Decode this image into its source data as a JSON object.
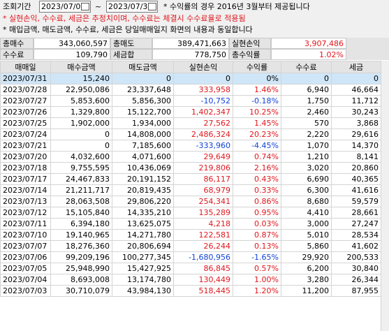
{
  "query": {
    "label": "조회기간",
    "from": "2023/07/0",
    "tilde": "~",
    "to": "2023/07/3",
    "note": "* 수익률의 경우 2016년 3월부터 제공됩니다"
  },
  "notes": [
    "* 실현손익, 수수료, 세금은 추정치이며, 수수료는 체결시 수수료율로 적용됨",
    "* 매입금액, 매도금액, 수수료, 세금은 당일매매일지 화면의 내용과 동일합니다"
  ],
  "summary": [
    [
      {
        "label": "총매수",
        "value": "343,060,597"
      },
      {
        "label": "총매도",
        "value": "389,471,663"
      },
      {
        "label": "실현손익",
        "value": "3,907,486"
      }
    ],
    [
      {
        "label": "수수료",
        "value": "109,790"
      },
      {
        "label": "세금합",
        "value": "778,750"
      },
      {
        "label": "총수익률",
        "value": "1.02%"
      }
    ]
  ],
  "table": {
    "headers": [
      "매매일",
      "매수금액",
      "매도금액",
      "실현손익",
      "수익률",
      "수수료",
      "세금"
    ],
    "rows": [
      [
        "2023/07/31",
        "15,240",
        "0",
        "0",
        "0%",
        "0",
        "0"
      ],
      [
        "2023/07/28",
        "22,950,086",
        "23,337,648",
        "333,958",
        "1.46%",
        "6,940",
        "46,664"
      ],
      [
        "2023/07/27",
        "5,853,600",
        "5,856,300",
        "-10,752",
        "-0.18%",
        "1,750",
        "11,712"
      ],
      [
        "2023/07/26",
        "1,329,800",
        "15,122,700",
        "1,402,347",
        "10.25%",
        "2,460",
        "30,243"
      ],
      [
        "2023/07/25",
        "1,902,000",
        "1,934,000",
        "27,562",
        "1.45%",
        "570",
        "3,868"
      ],
      [
        "2023/07/24",
        "0",
        "14,808,000",
        "2,486,324",
        "20.23%",
        "2,220",
        "29,616"
      ],
      [
        "2023/07/21",
        "0",
        "7,185,600",
        "-333,960",
        "-4.45%",
        "1,070",
        "14,370"
      ],
      [
        "2023/07/20",
        "4,032,600",
        "4,071,600",
        "29,649",
        "0.74%",
        "1,210",
        "8,141"
      ],
      [
        "2023/07/18",
        "9,755,595",
        "10,436,069",
        "219,806",
        "2.16%",
        "3,020",
        "20,860"
      ],
      [
        "2023/07/17",
        "24,467,833",
        "20,191,152",
        "86,117",
        "0.43%",
        "6,690",
        "40,365"
      ],
      [
        "2023/07/14",
        "21,211,717",
        "20,819,435",
        "68,979",
        "0.33%",
        "6,300",
        "41,616"
      ],
      [
        "2023/07/13",
        "28,063,508",
        "29,806,220",
        "254,341",
        "0.86%",
        "8,680",
        "59,579"
      ],
      [
        "2023/07/12",
        "15,105,840",
        "14,335,210",
        "135,289",
        "0.95%",
        "4,410",
        "28,661"
      ],
      [
        "2023/07/11",
        "6,394,180",
        "13,625,075",
        "4,218",
        "0.03%",
        "3,000",
        "27,247"
      ],
      [
        "2023/07/10",
        "19,140,965",
        "14,271,780",
        "122,581",
        "0.87%",
        "5,010",
        "28,534"
      ],
      [
        "2023/07/07",
        "18,276,360",
        "20,806,694",
        "26,244",
        "0.13%",
        "5,860",
        "41,602"
      ],
      [
        "2023/07/06",
        "99,209,196",
        "100,277,345",
        "-1,680,956",
        "-1.65%",
        "29,920",
        "200,533"
      ],
      [
        "2023/07/05",
        "25,948,990",
        "15,427,925",
        "86,845",
        "0.57%",
        "6,200",
        "30,840"
      ],
      [
        "2023/07/04",
        "8,693,008",
        "13,174,780",
        "130,449",
        "1.00%",
        "3,280",
        "26,344"
      ],
      [
        "2023/07/03",
        "30,710,079",
        "43,984,130",
        "518,445",
        "1.20%",
        "11,200",
        "87,955"
      ]
    ]
  }
}
